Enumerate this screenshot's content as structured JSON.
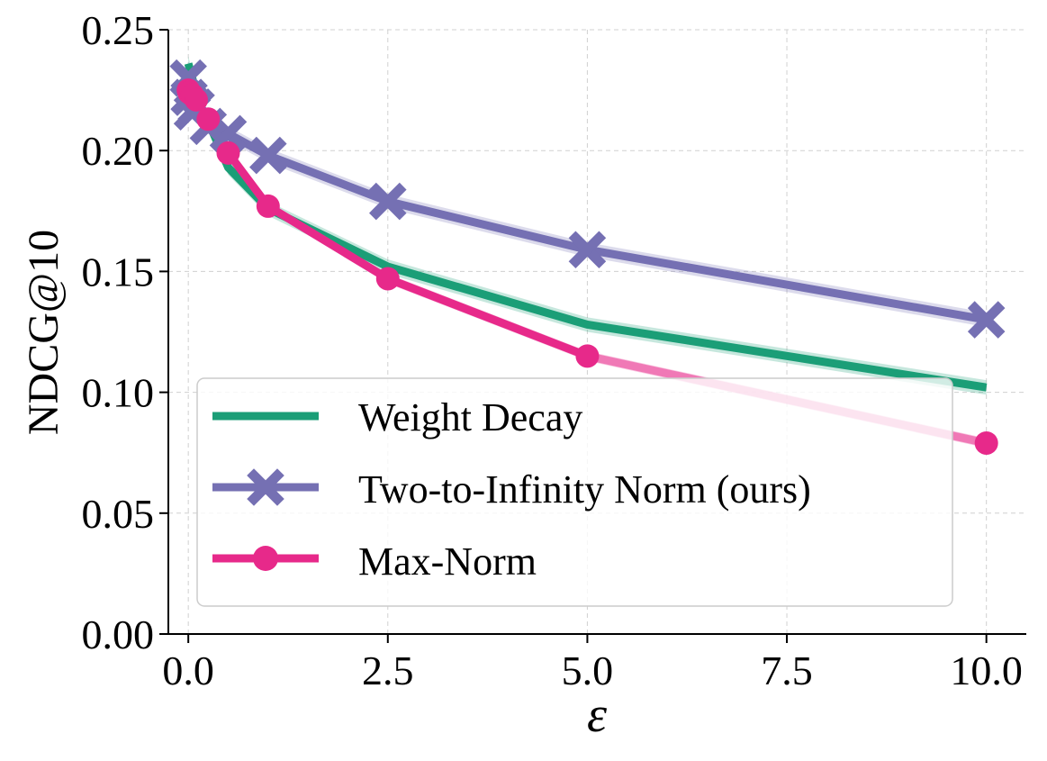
{
  "chart_data": {
    "type": "line",
    "title": "",
    "xlabel": "ε",
    "ylabel": "NDCG@10",
    "xlim": [
      -0.25,
      10.5
    ],
    "ylim": [
      0.0,
      0.25
    ],
    "grid": true,
    "legend_position": "lower-left",
    "x_ticks": [
      0.0,
      2.5,
      5.0,
      7.5,
      10.0
    ],
    "x_tick_labels": [
      "0.0",
      "2.5",
      "5.0",
      "7.5",
      "10.0"
    ],
    "y_ticks": [
      0.0,
      0.05,
      0.1,
      0.15,
      0.2,
      0.25
    ],
    "y_tick_labels": [
      "0.00",
      "0.05",
      "0.10",
      "0.15",
      "0.20",
      "0.25"
    ],
    "series": [
      {
        "name": "Weight Decay",
        "color": "#1b9e77",
        "marker": "none",
        "x": [
          0.0,
          0.05,
          0.1,
          0.25,
          0.5,
          1.0,
          2.5,
          5.0,
          10.0
        ],
        "values": [
          0.236,
          0.23,
          0.222,
          0.212,
          0.193,
          0.176,
          0.152,
          0.128,
          0.102
        ],
        "band": 0.003
      },
      {
        "name": "Two-to-Infinity Norm (ours)",
        "color": "#7570b3",
        "marker": "x",
        "x": [
          0.0,
          0.01,
          0.05,
          0.1,
          0.25,
          0.5,
          1.0,
          2.5,
          5.0,
          10.0
        ],
        "values": [
          0.23,
          0.222,
          0.216,
          0.218,
          0.21,
          0.207,
          0.198,
          0.179,
          0.159,
          0.13
        ],
        "band": 0.003
      },
      {
        "name": "Max-Norm",
        "color": "#e7298a",
        "marker": "circle",
        "x": [
          0.0,
          0.01,
          0.05,
          0.1,
          0.25,
          0.5,
          1.0,
          2.5,
          5.0,
          10.0
        ],
        "values": [
          0.225,
          0.224,
          0.223,
          0.221,
          0.213,
          0.199,
          0.177,
          0.147,
          0.115,
          0.079
        ],
        "band": 0.002,
        "faded_after_x": 5.0
      }
    ]
  }
}
